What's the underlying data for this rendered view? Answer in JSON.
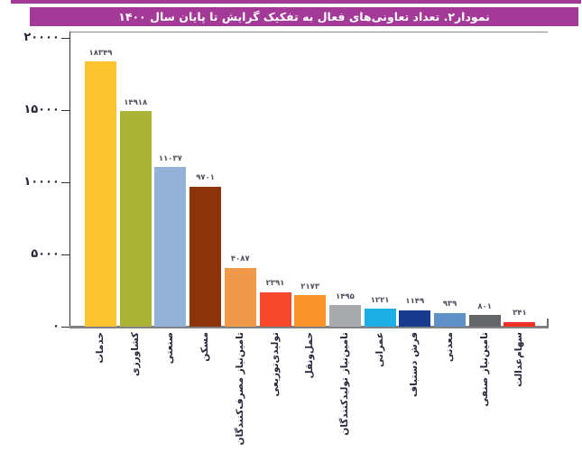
{
  "accent_color": "#A33A98",
  "header": {
    "title": "نمودار۲. تعداد تعاونی‌های فعال به تفکیک گرایش تا پایان سال ۱۴۰۰",
    "bg_color": "#A33A98",
    "text_color": "#FFFFFF"
  },
  "chart_data": {
    "type": "bar",
    "title": "نمودار۲. تعداد تعاونی‌های فعال به تفکیک گرایش تا پایان سال ۱۴۰۰",
    "xlabel": "",
    "ylabel": "",
    "ylim": [
      0,
      20000
    ],
    "grid": false,
    "legend": "none",
    "categories": [
      "خدمات",
      "کشاورزی",
      "صنعتی",
      "مسکن",
      "تامین‌نیاز مصرف‌کنندگان",
      "تولیدی‌توزیعی",
      "حمل‌ونقل",
      "تامین‌نیاز تولیدکنندگان",
      "عمرانی",
      "فرش دستباف",
      "معدنی",
      "تامین‌نیاز صنفی",
      "سهام‌عدالت"
    ],
    "values": [
      18349,
      14918,
      11037,
      9701,
      4087,
      2391,
      2173,
      1495,
      1221,
      1149,
      939,
      801,
      341
    ],
    "value_labels": [
      "۱۸۳۴۹",
      "۱۴۹۱۸",
      "۱۱۰۳۷",
      "۹۷۰۱",
      "۴۰۸۷",
      "۲۳۹۱",
      "۲۱۷۳",
      "۱۴۹۵",
      "۱۲۲۱",
      "۱۱۴۹",
      "۹۳۹",
      "۸۰۱",
      "۳۴۱"
    ],
    "bar_colors": [
      "#FDC431",
      "#A9B437",
      "#94B1D7",
      "#8B3309",
      "#F1994B",
      "#F6472B",
      "#F89429",
      "#A7A9AC",
      "#1CAEE4",
      "#173A8E",
      "#6090C8",
      "#636569",
      "#EE3124"
    ],
    "y_ticks": [
      {
        "value": 0,
        "label": "۰"
      },
      {
        "value": 5000,
        "label": "۵۰۰۰"
      },
      {
        "value": 10000,
        "label": "۱۰۰۰۰"
      },
      {
        "value": 15000,
        "label": "۱۵۰۰۰"
      },
      {
        "value": 20000,
        "label": "۲۰۰۰۰"
      }
    ]
  }
}
